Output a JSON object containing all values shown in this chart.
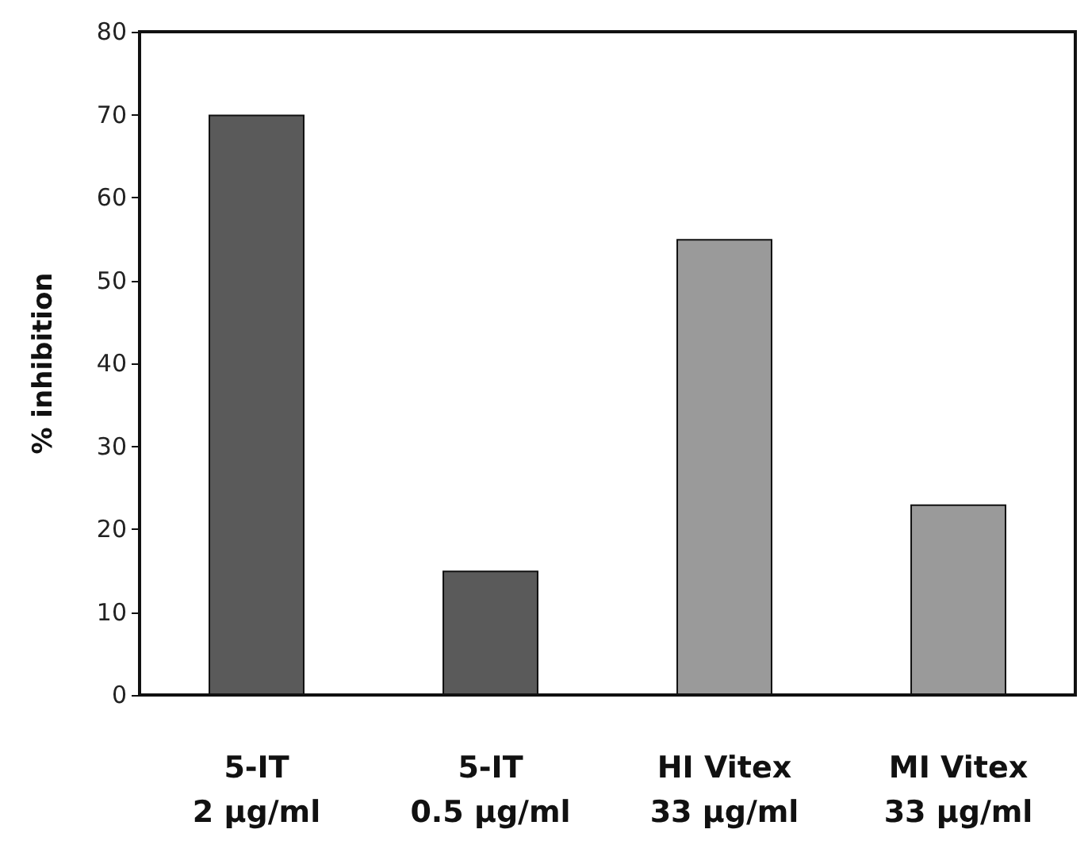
{
  "chart_data": {
    "type": "bar",
    "ylabel": "% inhibition",
    "categories": [
      "5-IT\n2 µg/ml",
      "5-IT\n0.5 µg/ml",
      "HI Vitex\n33 µg/ml",
      "MI Vitex\n33 µg/ml"
    ],
    "values": [
      70,
      15,
      55,
      23
    ],
    "colors": [
      "#5a5a5a",
      "#5a5a5a",
      "#9a9a9a",
      "#9a9a9a"
    ],
    "ylim": [
      0,
      80
    ],
    "yticks": [
      0,
      10,
      20,
      30,
      40,
      50,
      60,
      70,
      80
    ],
    "grid": false
  }
}
